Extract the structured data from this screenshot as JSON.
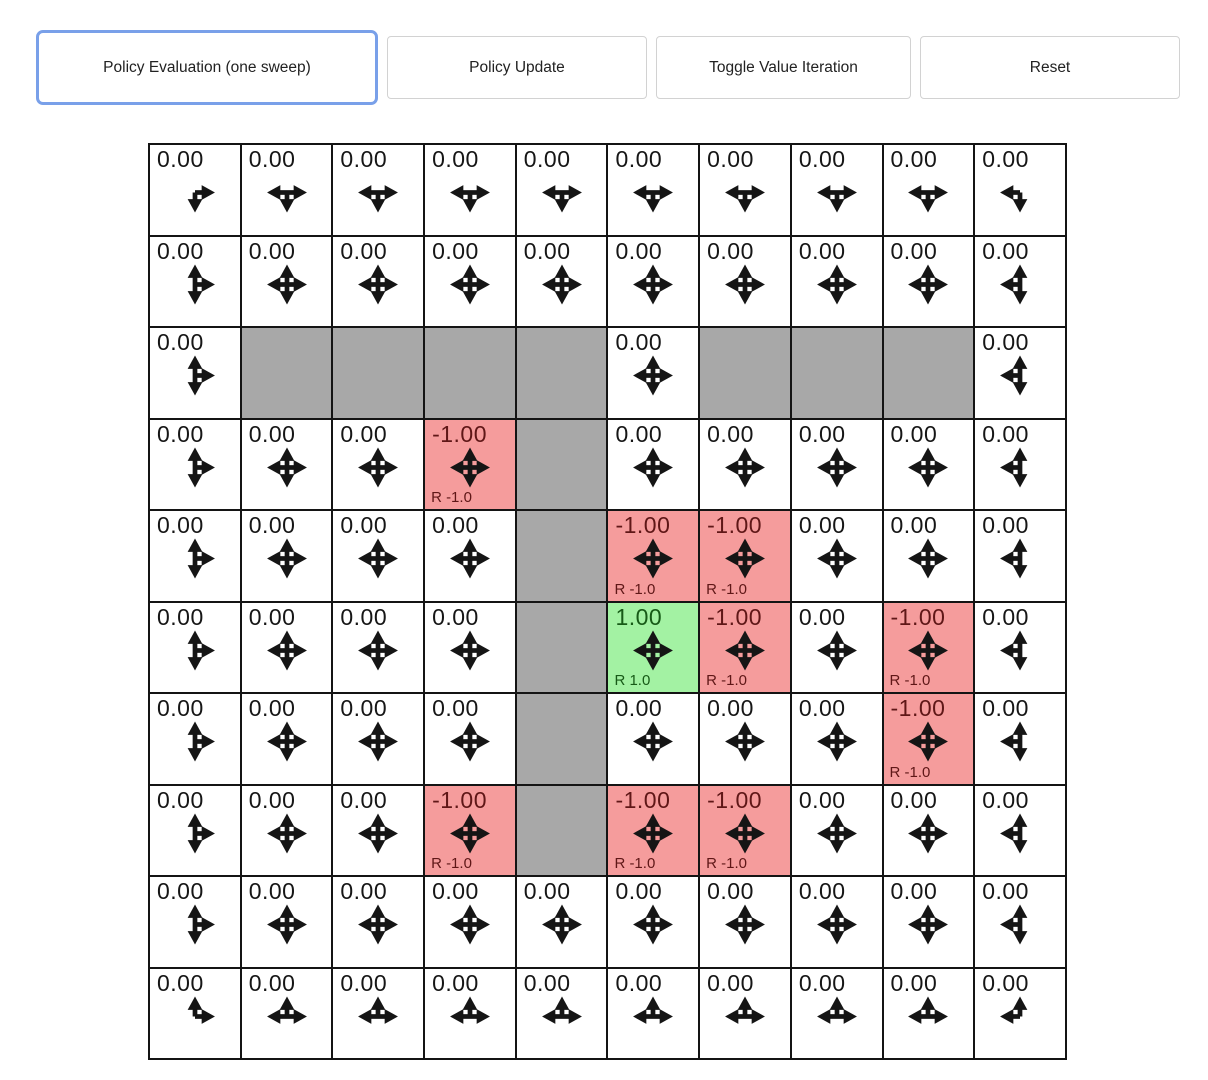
{
  "toolbar": {
    "buttons": [
      {
        "label": "Policy Evaluation (one sweep)",
        "focused": true
      },
      {
        "label": "Policy Update",
        "focused": false
      },
      {
        "label": "Toggle Value Iteration",
        "focused": false
      },
      {
        "label": "Reset",
        "focused": false
      }
    ]
  },
  "colors": {
    "wall": "#a8a8a8",
    "reward_negative_bg": "#f59c9c",
    "reward_negative_text": "#5f1717",
    "reward_positive_bg": "#a3f2a3",
    "reward_positive_text": "#175a17",
    "focus_ring": "#79a0e9",
    "grid_line": "#141414"
  },
  "grid": {
    "rows": 10,
    "cols": 10,
    "legend": {
      "wall": "gray cell",
      "negative_reward": "red cell",
      "positive_reward": "green cell"
    },
    "cells": [
      {
        "v": "0.00",
        "t": "n",
        "a": [
          "r",
          "d"
        ]
      },
      {
        "v": "0.00",
        "t": "n",
        "a": [
          "l",
          "r",
          "d"
        ]
      },
      {
        "v": "0.00",
        "t": "n",
        "a": [
          "l",
          "r",
          "d"
        ]
      },
      {
        "v": "0.00",
        "t": "n",
        "a": [
          "l",
          "r",
          "d"
        ]
      },
      {
        "v": "0.00",
        "t": "n",
        "a": [
          "l",
          "r",
          "d"
        ]
      },
      {
        "v": "0.00",
        "t": "n",
        "a": [
          "l",
          "r",
          "d"
        ]
      },
      {
        "v": "0.00",
        "t": "n",
        "a": [
          "l",
          "r",
          "d"
        ]
      },
      {
        "v": "0.00",
        "t": "n",
        "a": [
          "l",
          "r",
          "d"
        ]
      },
      {
        "v": "0.00",
        "t": "n",
        "a": [
          "l",
          "r",
          "d"
        ]
      },
      {
        "v": "0.00",
        "t": "n",
        "a": [
          "l",
          "d"
        ]
      },
      {
        "v": "0.00",
        "t": "n",
        "a": [
          "u",
          "d",
          "r"
        ]
      },
      {
        "v": "0.00",
        "t": "n",
        "a": [
          "u",
          "d",
          "l",
          "r"
        ]
      },
      {
        "v": "0.00",
        "t": "n",
        "a": [
          "u",
          "d",
          "l",
          "r"
        ]
      },
      {
        "v": "0.00",
        "t": "n",
        "a": [
          "u",
          "d",
          "l",
          "r"
        ]
      },
      {
        "v": "0.00",
        "t": "n",
        "a": [
          "u",
          "d",
          "l",
          "r"
        ]
      },
      {
        "v": "0.00",
        "t": "n",
        "a": [
          "u",
          "d",
          "l",
          "r"
        ]
      },
      {
        "v": "0.00",
        "t": "n",
        "a": [
          "u",
          "d",
          "l",
          "r"
        ]
      },
      {
        "v": "0.00",
        "t": "n",
        "a": [
          "u",
          "d",
          "l",
          "r"
        ]
      },
      {
        "v": "0.00",
        "t": "n",
        "a": [
          "u",
          "d",
          "l",
          "r"
        ]
      },
      {
        "v": "0.00",
        "t": "n",
        "a": [
          "u",
          "d",
          "l"
        ]
      },
      {
        "v": "0.00",
        "t": "n",
        "a": [
          "u",
          "d",
          "r"
        ]
      },
      {
        "t": "w"
      },
      {
        "t": "w"
      },
      {
        "t": "w"
      },
      {
        "t": "w"
      },
      {
        "v": "0.00",
        "t": "n",
        "a": [
          "u",
          "d",
          "l",
          "r"
        ]
      },
      {
        "t": "w"
      },
      {
        "t": "w"
      },
      {
        "t": "w"
      },
      {
        "v": "0.00",
        "t": "n",
        "a": [
          "u",
          "d",
          "l"
        ]
      },
      {
        "v": "0.00",
        "t": "n",
        "a": [
          "u",
          "d",
          "r"
        ]
      },
      {
        "v": "0.00",
        "t": "n",
        "a": [
          "u",
          "d",
          "l",
          "r"
        ]
      },
      {
        "v": "0.00",
        "t": "n",
        "a": [
          "u",
          "d",
          "l",
          "r"
        ]
      },
      {
        "v": "-1.00",
        "t": "neg",
        "rw": "R -1.0",
        "a": [
          "u",
          "d",
          "l",
          "r"
        ]
      },
      {
        "t": "w"
      },
      {
        "v": "0.00",
        "t": "n",
        "a": [
          "u",
          "d",
          "l",
          "r"
        ]
      },
      {
        "v": "0.00",
        "t": "n",
        "a": [
          "u",
          "d",
          "l",
          "r"
        ]
      },
      {
        "v": "0.00",
        "t": "n",
        "a": [
          "u",
          "d",
          "l",
          "r"
        ]
      },
      {
        "v": "0.00",
        "t": "n",
        "a": [
          "u",
          "d",
          "l",
          "r"
        ]
      },
      {
        "v": "0.00",
        "t": "n",
        "a": [
          "u",
          "d",
          "l"
        ]
      },
      {
        "v": "0.00",
        "t": "n",
        "a": [
          "u",
          "d",
          "r"
        ]
      },
      {
        "v": "0.00",
        "t": "n",
        "a": [
          "u",
          "d",
          "l",
          "r"
        ]
      },
      {
        "v": "0.00",
        "t": "n",
        "a": [
          "u",
          "d",
          "l",
          "r"
        ]
      },
      {
        "v": "0.00",
        "t": "n",
        "a": [
          "u",
          "d",
          "l",
          "r"
        ]
      },
      {
        "t": "w"
      },
      {
        "v": "-1.00",
        "t": "neg",
        "rw": "R -1.0",
        "a": [
          "u",
          "d",
          "l",
          "r"
        ]
      },
      {
        "v": "-1.00",
        "t": "neg",
        "rw": "R -1.0",
        "a": [
          "u",
          "d",
          "l",
          "r"
        ]
      },
      {
        "v": "0.00",
        "t": "n",
        "a": [
          "u",
          "d",
          "l",
          "r"
        ]
      },
      {
        "v": "0.00",
        "t": "n",
        "a": [
          "u",
          "d",
          "l",
          "r"
        ]
      },
      {
        "v": "0.00",
        "t": "n",
        "a": [
          "u",
          "d",
          "l"
        ]
      },
      {
        "v": "0.00",
        "t": "n",
        "a": [
          "u",
          "d",
          "r"
        ]
      },
      {
        "v": "0.00",
        "t": "n",
        "a": [
          "u",
          "d",
          "l",
          "r"
        ]
      },
      {
        "v": "0.00",
        "t": "n",
        "a": [
          "u",
          "d",
          "l",
          "r"
        ]
      },
      {
        "v": "0.00",
        "t": "n",
        "a": [
          "u",
          "d",
          "l",
          "r"
        ]
      },
      {
        "t": "w"
      },
      {
        "v": "1.00",
        "t": "pos",
        "rw": "R 1.0",
        "a": [
          "u",
          "d",
          "l",
          "r"
        ]
      },
      {
        "v": "-1.00",
        "t": "neg",
        "rw": "R -1.0",
        "a": [
          "u",
          "d",
          "l",
          "r"
        ]
      },
      {
        "v": "0.00",
        "t": "n",
        "a": [
          "u",
          "d",
          "l",
          "r"
        ]
      },
      {
        "v": "-1.00",
        "t": "neg",
        "rw": "R -1.0",
        "a": [
          "u",
          "d",
          "l",
          "r"
        ]
      },
      {
        "v": "0.00",
        "t": "n",
        "a": [
          "u",
          "d",
          "l"
        ]
      },
      {
        "v": "0.00",
        "t": "n",
        "a": [
          "u",
          "d",
          "r"
        ]
      },
      {
        "v": "0.00",
        "t": "n",
        "a": [
          "u",
          "d",
          "l",
          "r"
        ]
      },
      {
        "v": "0.00",
        "t": "n",
        "a": [
          "u",
          "d",
          "l",
          "r"
        ]
      },
      {
        "v": "0.00",
        "t": "n",
        "a": [
          "u",
          "d",
          "l",
          "r"
        ]
      },
      {
        "t": "w"
      },
      {
        "v": "0.00",
        "t": "n",
        "a": [
          "u",
          "d",
          "l",
          "r"
        ]
      },
      {
        "v": "0.00",
        "t": "n",
        "a": [
          "u",
          "d",
          "l",
          "r"
        ]
      },
      {
        "v": "0.00",
        "t": "n",
        "a": [
          "u",
          "d",
          "l",
          "r"
        ]
      },
      {
        "v": "-1.00",
        "t": "neg",
        "rw": "R -1.0",
        "a": [
          "u",
          "d",
          "l",
          "r"
        ]
      },
      {
        "v": "0.00",
        "t": "n",
        "a": [
          "u",
          "d",
          "l"
        ]
      },
      {
        "v": "0.00",
        "t": "n",
        "a": [
          "u",
          "d",
          "r"
        ]
      },
      {
        "v": "0.00",
        "t": "n",
        "a": [
          "u",
          "d",
          "l",
          "r"
        ]
      },
      {
        "v": "0.00",
        "t": "n",
        "a": [
          "u",
          "d",
          "l",
          "r"
        ]
      },
      {
        "v": "-1.00",
        "t": "neg",
        "rw": "R -1.0",
        "a": [
          "u",
          "d",
          "l",
          "r"
        ]
      },
      {
        "t": "w"
      },
      {
        "v": "-1.00",
        "t": "neg",
        "rw": "R -1.0",
        "a": [
          "u",
          "d",
          "l",
          "r"
        ]
      },
      {
        "v": "-1.00",
        "t": "neg",
        "rw": "R -1.0",
        "a": [
          "u",
          "d",
          "l",
          "r"
        ]
      },
      {
        "v": "0.00",
        "t": "n",
        "a": [
          "u",
          "d",
          "l",
          "r"
        ]
      },
      {
        "v": "0.00",
        "t": "n",
        "a": [
          "u",
          "d",
          "l",
          "r"
        ]
      },
      {
        "v": "0.00",
        "t": "n",
        "a": [
          "u",
          "d",
          "l"
        ]
      },
      {
        "v": "0.00",
        "t": "n",
        "a": [
          "u",
          "d",
          "r"
        ]
      },
      {
        "v": "0.00",
        "t": "n",
        "a": [
          "u",
          "d",
          "l",
          "r"
        ]
      },
      {
        "v": "0.00",
        "t": "n",
        "a": [
          "u",
          "d",
          "l",
          "r"
        ]
      },
      {
        "v": "0.00",
        "t": "n",
        "a": [
          "u",
          "d",
          "l",
          "r"
        ]
      },
      {
        "v": "0.00",
        "t": "n",
        "a": [
          "u",
          "d",
          "l",
          "r"
        ]
      },
      {
        "v": "0.00",
        "t": "n",
        "a": [
          "u",
          "d",
          "l",
          "r"
        ]
      },
      {
        "v": "0.00",
        "t": "n",
        "a": [
          "u",
          "d",
          "l",
          "r"
        ]
      },
      {
        "v": "0.00",
        "t": "n",
        "a": [
          "u",
          "d",
          "l",
          "r"
        ]
      },
      {
        "v": "0.00",
        "t": "n",
        "a": [
          "u",
          "d",
          "l",
          "r"
        ]
      },
      {
        "v": "0.00",
        "t": "n",
        "a": [
          "u",
          "d",
          "l"
        ]
      },
      {
        "v": "0.00",
        "t": "n",
        "a": [
          "u",
          "r"
        ]
      },
      {
        "v": "0.00",
        "t": "n",
        "a": [
          "u",
          "l",
          "r"
        ]
      },
      {
        "v": "0.00",
        "t": "n",
        "a": [
          "u",
          "l",
          "r"
        ]
      },
      {
        "v": "0.00",
        "t": "n",
        "a": [
          "u",
          "l",
          "r"
        ]
      },
      {
        "v": "0.00",
        "t": "n",
        "a": [
          "u",
          "l",
          "r"
        ]
      },
      {
        "v": "0.00",
        "t": "n",
        "a": [
          "u",
          "l",
          "r"
        ]
      },
      {
        "v": "0.00",
        "t": "n",
        "a": [
          "u",
          "l",
          "r"
        ]
      },
      {
        "v": "0.00",
        "t": "n",
        "a": [
          "u",
          "l",
          "r"
        ]
      },
      {
        "v": "0.00",
        "t": "n",
        "a": [
          "u",
          "l",
          "r"
        ]
      },
      {
        "v": "0.00",
        "t": "n",
        "a": [
          "u",
          "l"
        ]
      }
    ]
  }
}
